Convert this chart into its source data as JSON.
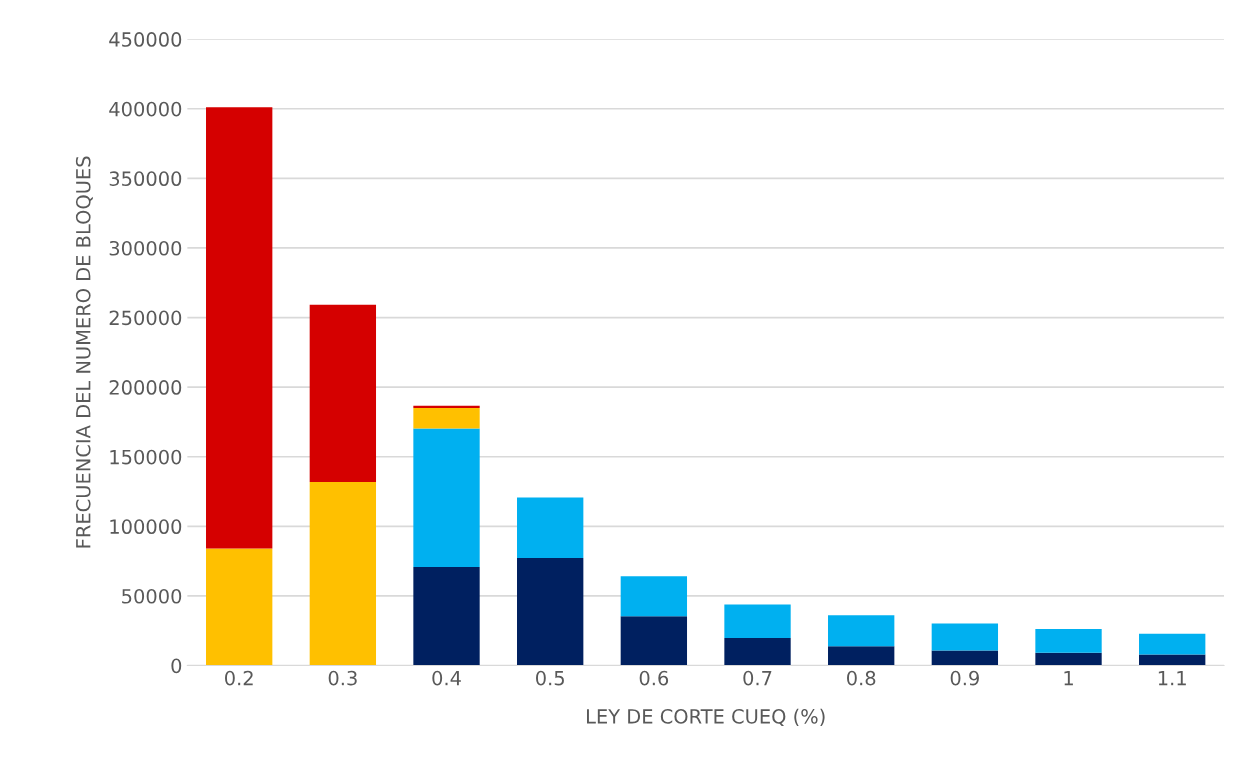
{
  "chart_data": {
    "type": "bar",
    "stacked": true,
    "categories": [
      "0.2",
      "0.3",
      "0.4",
      "0.5",
      "0.6",
      "0.7",
      "0.8",
      "0.9",
      "1",
      "1.1"
    ],
    "series": [
      {
        "color": "#002060",
        "values": [
          null,
          null,
          70800,
          77200,
          35500,
          19800,
          13900,
          10900,
          9200,
          8000
        ]
      },
      {
        "color": "#00b0f0",
        "values": [
          null,
          null,
          99500,
          43500,
          28700,
          24000,
          22200,
          19300,
          17100,
          14800
        ]
      },
      {
        "color": "#ffc000",
        "values": [
          84100,
          131800,
          14800,
          null,
          null,
          null,
          null,
          null,
          null,
          null
        ]
      },
      {
        "color": "#d50000",
        "values": [
          317000,
          127400,
          1600,
          null,
          null,
          null,
          null,
          null,
          null,
          null
        ]
      }
    ],
    "xlabel": "LEY DE CORTE CUEQ (%)",
    "ylabel": "FRECUENCIA DEL NUMERO DE BLOQUES",
    "ylim": [
      0,
      450000
    ],
    "yticks": [
      0,
      50000,
      100000,
      150000,
      200000,
      250000,
      300000,
      350000,
      400000,
      450000
    ],
    "grid": "y"
  }
}
